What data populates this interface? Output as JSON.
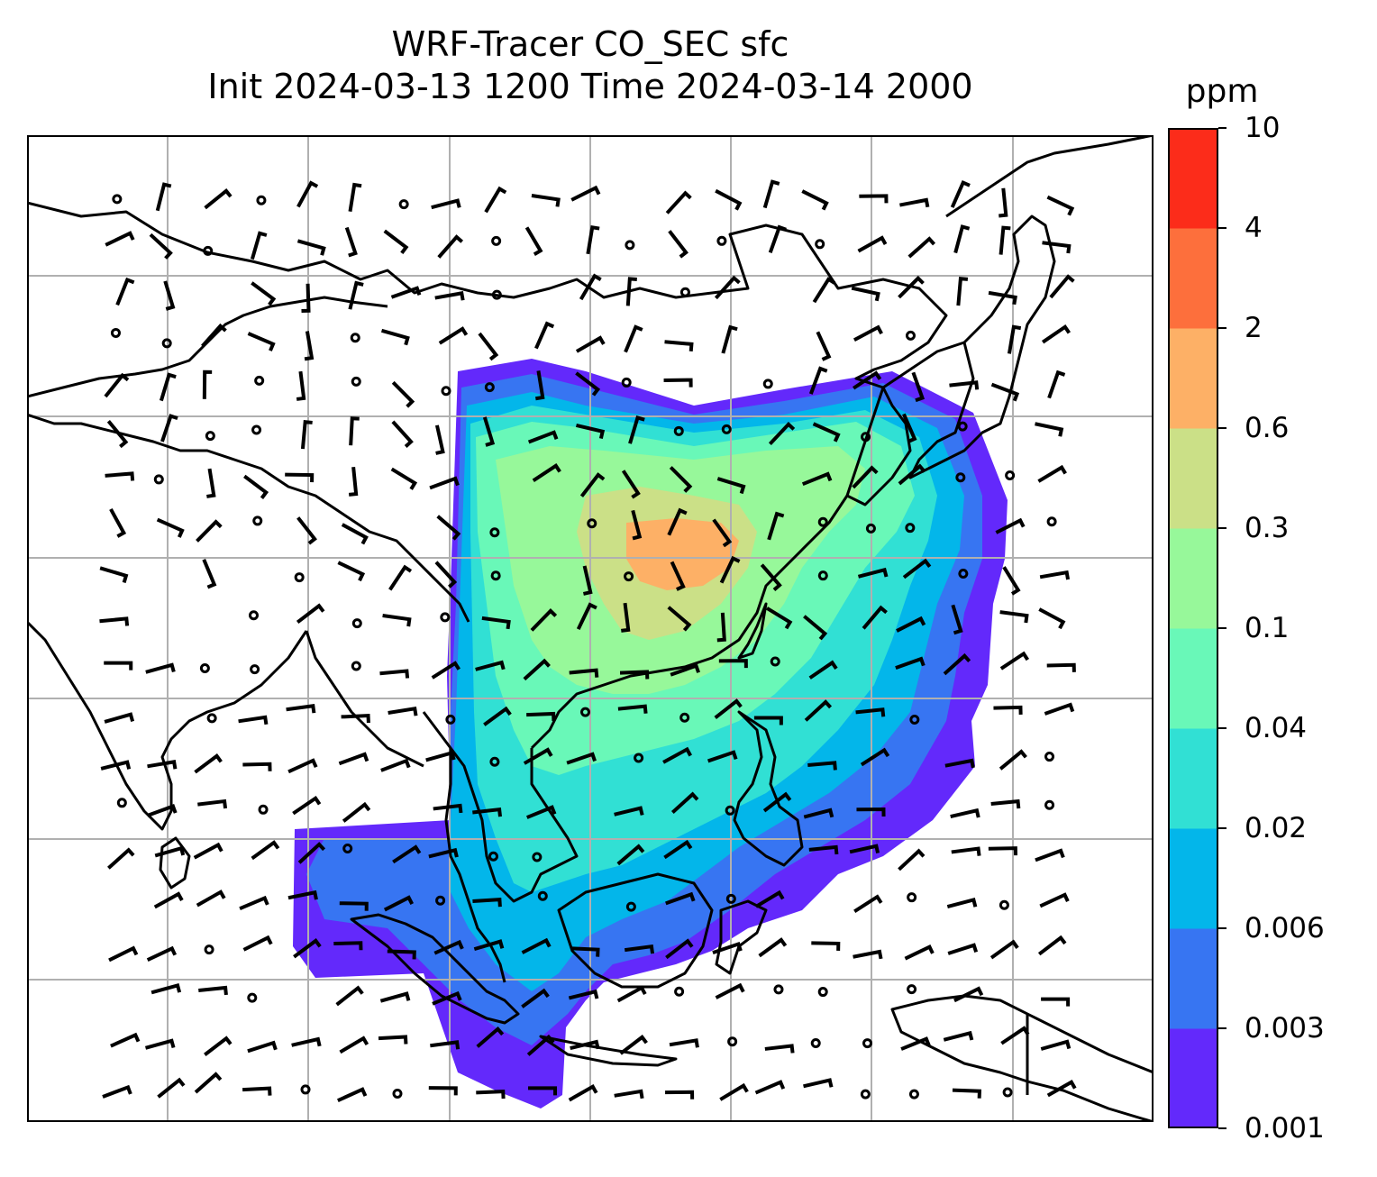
{
  "figure": {
    "title_line1": "WRF-Tracer CO_SEC sfc",
    "title_line2": "Init 2024-03-13 1200 Time 2024-03-14 2000"
  },
  "colorbar": {
    "unit": "ppm",
    "levels": [
      "0.001",
      "0.003",
      "0.006",
      "0.02",
      "0.04",
      "0.1",
      "0.3",
      "0.6",
      "2",
      "4",
      "10"
    ],
    "colors": [
      "#6329fb",
      "#3775f2",
      "#03b6ea",
      "#31e0d4",
      "#69f8b8",
      "#97f89a",
      "#cbe087",
      "#fdb066",
      "#fd6f3c",
      "#fc2c1a"
    ]
  },
  "map": {
    "gridlines": "on",
    "coastline_color": "#000000",
    "wind_barbs": "black",
    "tracer_field": "CO_SEC"
  }
}
